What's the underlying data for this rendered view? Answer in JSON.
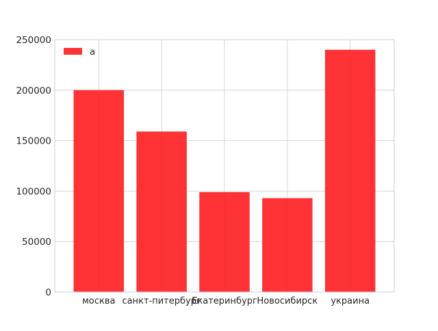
{
  "chart_data": {
    "type": "bar",
    "categories": [
      "москва",
      "санкт-питербург",
      "Екатеринбург",
      "Новосибирск",
      "украина"
    ],
    "series": [
      {
        "name": "a",
        "values": [
          200000,
          159000,
          99000,
          93000,
          240000
        ]
      }
    ],
    "ylim": [
      0,
      250000
    ],
    "yticks": [
      0,
      50000,
      100000,
      150000,
      200000,
      250000
    ],
    "grid": true,
    "legend_position": "top-left",
    "colors": {
      "bar": "#ff3336",
      "grid": "#cccccc",
      "axis": "#cccccc",
      "text": "#262626"
    }
  }
}
